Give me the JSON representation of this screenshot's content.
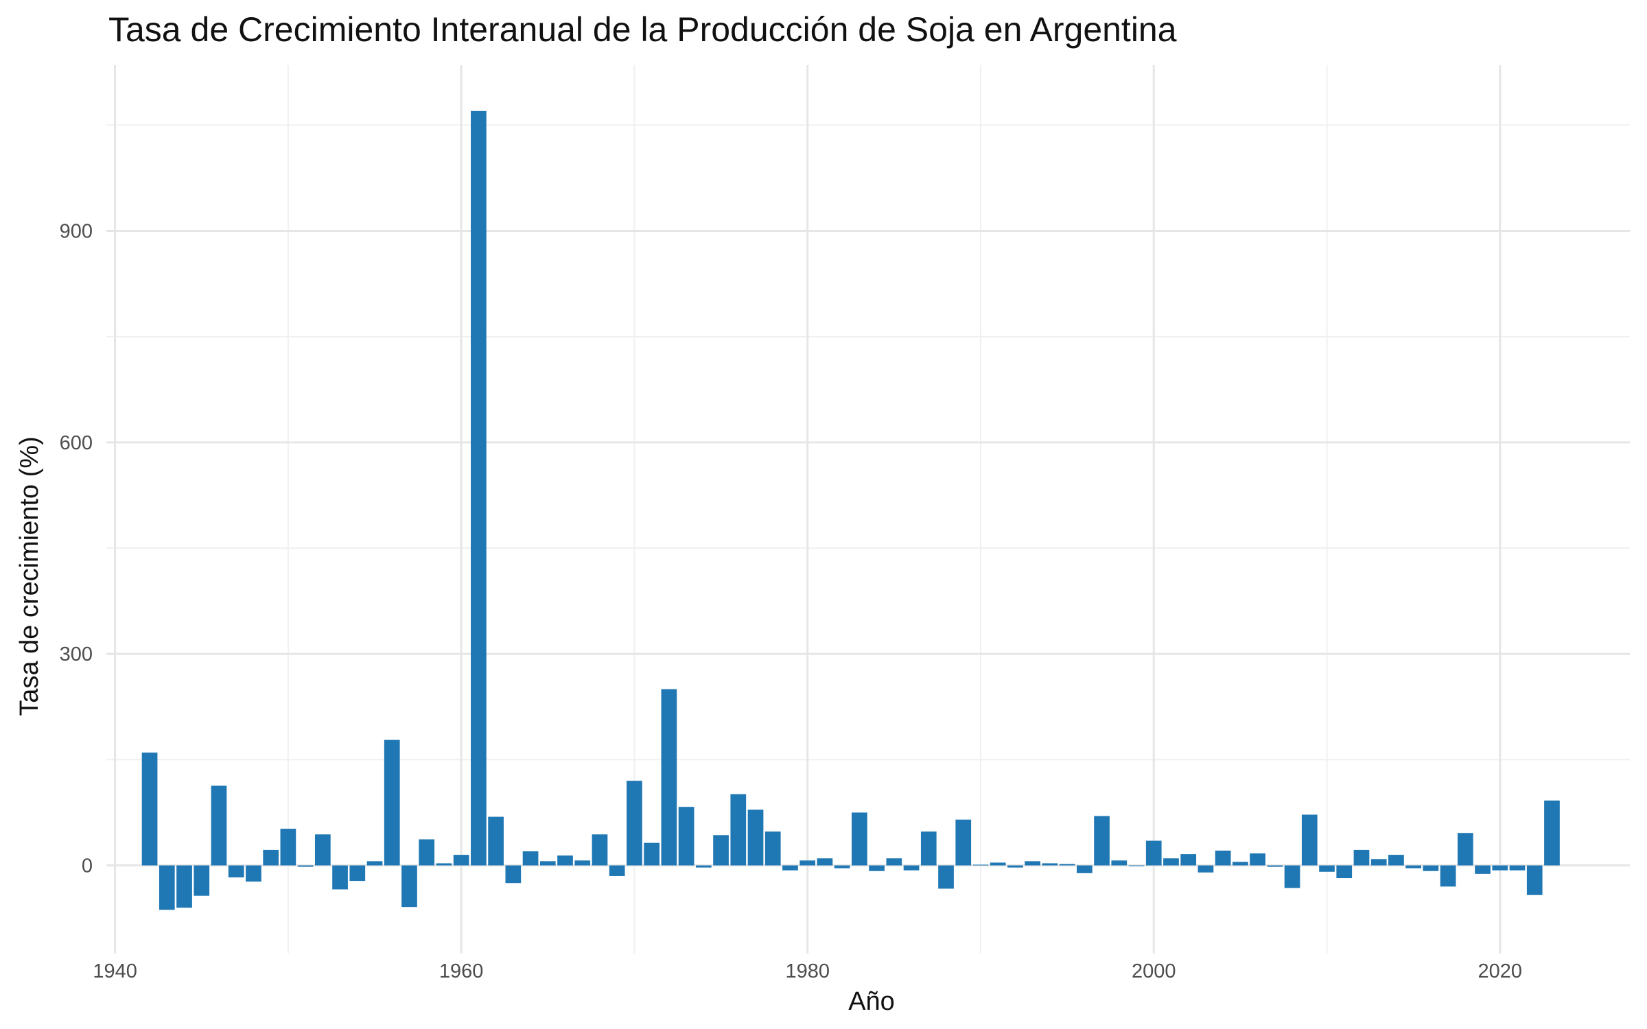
{
  "chart_data": {
    "type": "bar",
    "title": "Tasa de Crecimiento Interanual de la Producción de Soja en Argentina",
    "xlabel": "Año",
    "ylabel": "Tasa de crecimiento (%)",
    "xlim": [
      1939.5,
      2027.5
    ],
    "ylim": [
      -125,
      1135
    ],
    "x_ticks": [
      1940,
      1960,
      1980,
      2000,
      2020
    ],
    "y_ticks": [
      0,
      300,
      600,
      900
    ],
    "grid": true,
    "legend": "none",
    "color": "#1f77b4",
    "x": [
      1942,
      1943,
      1944,
      1945,
      1946,
      1947,
      1948,
      1949,
      1950,
      1951,
      1952,
      1953,
      1954,
      1955,
      1956,
      1957,
      1958,
      1959,
      1960,
      1961,
      1962,
      1963,
      1964,
      1965,
      1966,
      1967,
      1968,
      1969,
      1970,
      1971,
      1972,
      1973,
      1974,
      1975,
      1976,
      1977,
      1978,
      1979,
      1980,
      1981,
      1982,
      1983,
      1984,
      1985,
      1986,
      1987,
      1988,
      1989,
      1990,
      1991,
      1992,
      1993,
      1994,
      1995,
      1996,
      1997,
      1998,
      1999,
      2000,
      2001,
      2002,
      2003,
      2004,
      2005,
      2006,
      2007,
      2008,
      2009,
      2010,
      2011,
      2012,
      2013,
      2014,
      2015,
      2016,
      2017,
      2018,
      2019,
      2020,
      2021,
      2022,
      2023
    ],
    "values": [
      160,
      -63,
      -60,
      -43,
      113,
      -17,
      -23,
      22,
      52,
      -2,
      44,
      -34,
      -22,
      6,
      178,
      -59,
      37,
      3,
      15,
      1070,
      69,
      -25,
      20,
      6,
      14,
      7,
      44,
      -15,
      120,
      32,
      250,
      83,
      -3,
      43,
      101,
      79,
      48,
      -7,
      7,
      10,
      -4,
      75,
      -8,
      10,
      -7,
      48,
      -33,
      65,
      1,
      4,
      -3,
      6,
      3,
      2,
      -11,
      70,
      7,
      0,
      35,
      10,
      16,
      -10,
      21,
      5,
      17,
      -2,
      -32,
      72,
      -9,
      -18,
      22,
      9,
      15,
      -4,
      -8,
      -30,
      46,
      -12,
      -7,
      -7,
      -42,
      92
    ]
  }
}
